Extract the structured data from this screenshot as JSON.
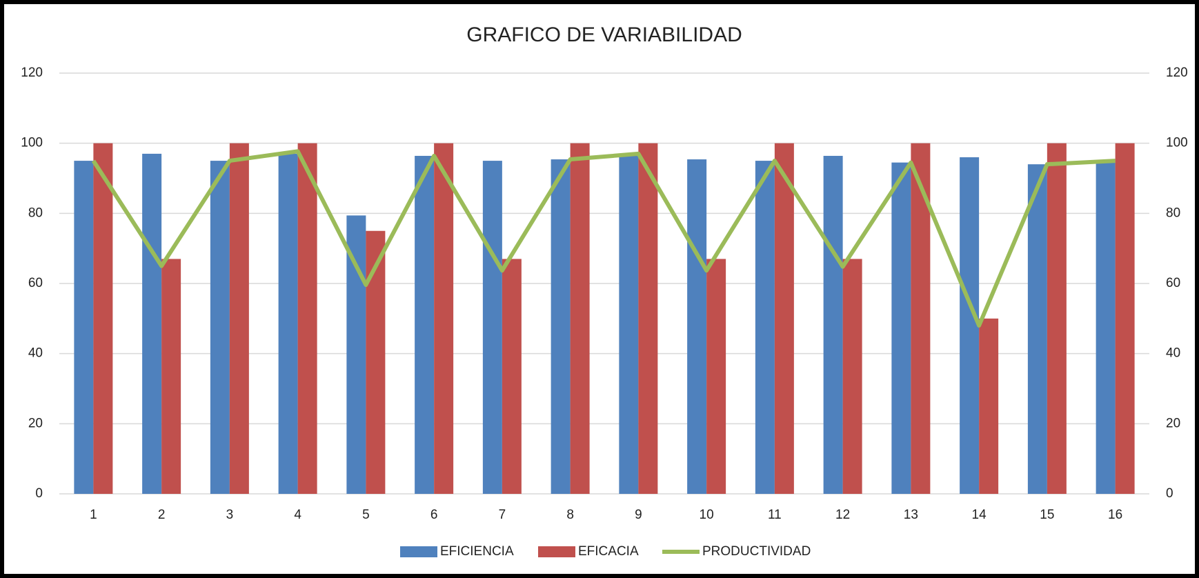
{
  "chart_data": {
    "type": "bar_line",
    "title": "GRAFICO DE VARIABILIDAD",
    "categories": [
      "1",
      "2",
      "3",
      "4",
      "5",
      "6",
      "7",
      "8",
      "9",
      "10",
      "11",
      "12",
      "13",
      "14",
      "15",
      "16"
    ],
    "series": [
      {
        "name": "EFICIENCIA",
        "type": "bar",
        "color": "#4f81bd",
        "values": [
          95,
          97,
          95,
          97,
          79.4,
          96.4,
          95,
          95.4,
          97,
          95.4,
          95,
          96.4,
          94.5,
          96,
          94,
          95
        ]
      },
      {
        "name": "EFICACIA",
        "type": "bar",
        "color": "#c0504d",
        "values": [
          100,
          67,
          100,
          100,
          75,
          100,
          67,
          100,
          100,
          67,
          100,
          67,
          100,
          50,
          100,
          100
        ]
      },
      {
        "name": "PRODUCTIVIDAD",
        "type": "line",
        "axis": "y2",
        "color": "#9bbb59",
        "values": [
          95,
          65,
          95,
          97.7,
          59.6,
          96.4,
          63.7,
          95.4,
          97,
          63.7,
          95,
          64.8,
          94.5,
          48,
          94,
          95
        ]
      }
    ],
    "ylim": [
      0,
      120
    ],
    "yticks": [
      0,
      20,
      40,
      60,
      80,
      100,
      120
    ],
    "y2lim": [
      0,
      120
    ],
    "y2ticks": [
      0,
      20,
      40,
      60,
      80,
      100,
      120
    ],
    "grid": true,
    "legend": "bottom"
  }
}
